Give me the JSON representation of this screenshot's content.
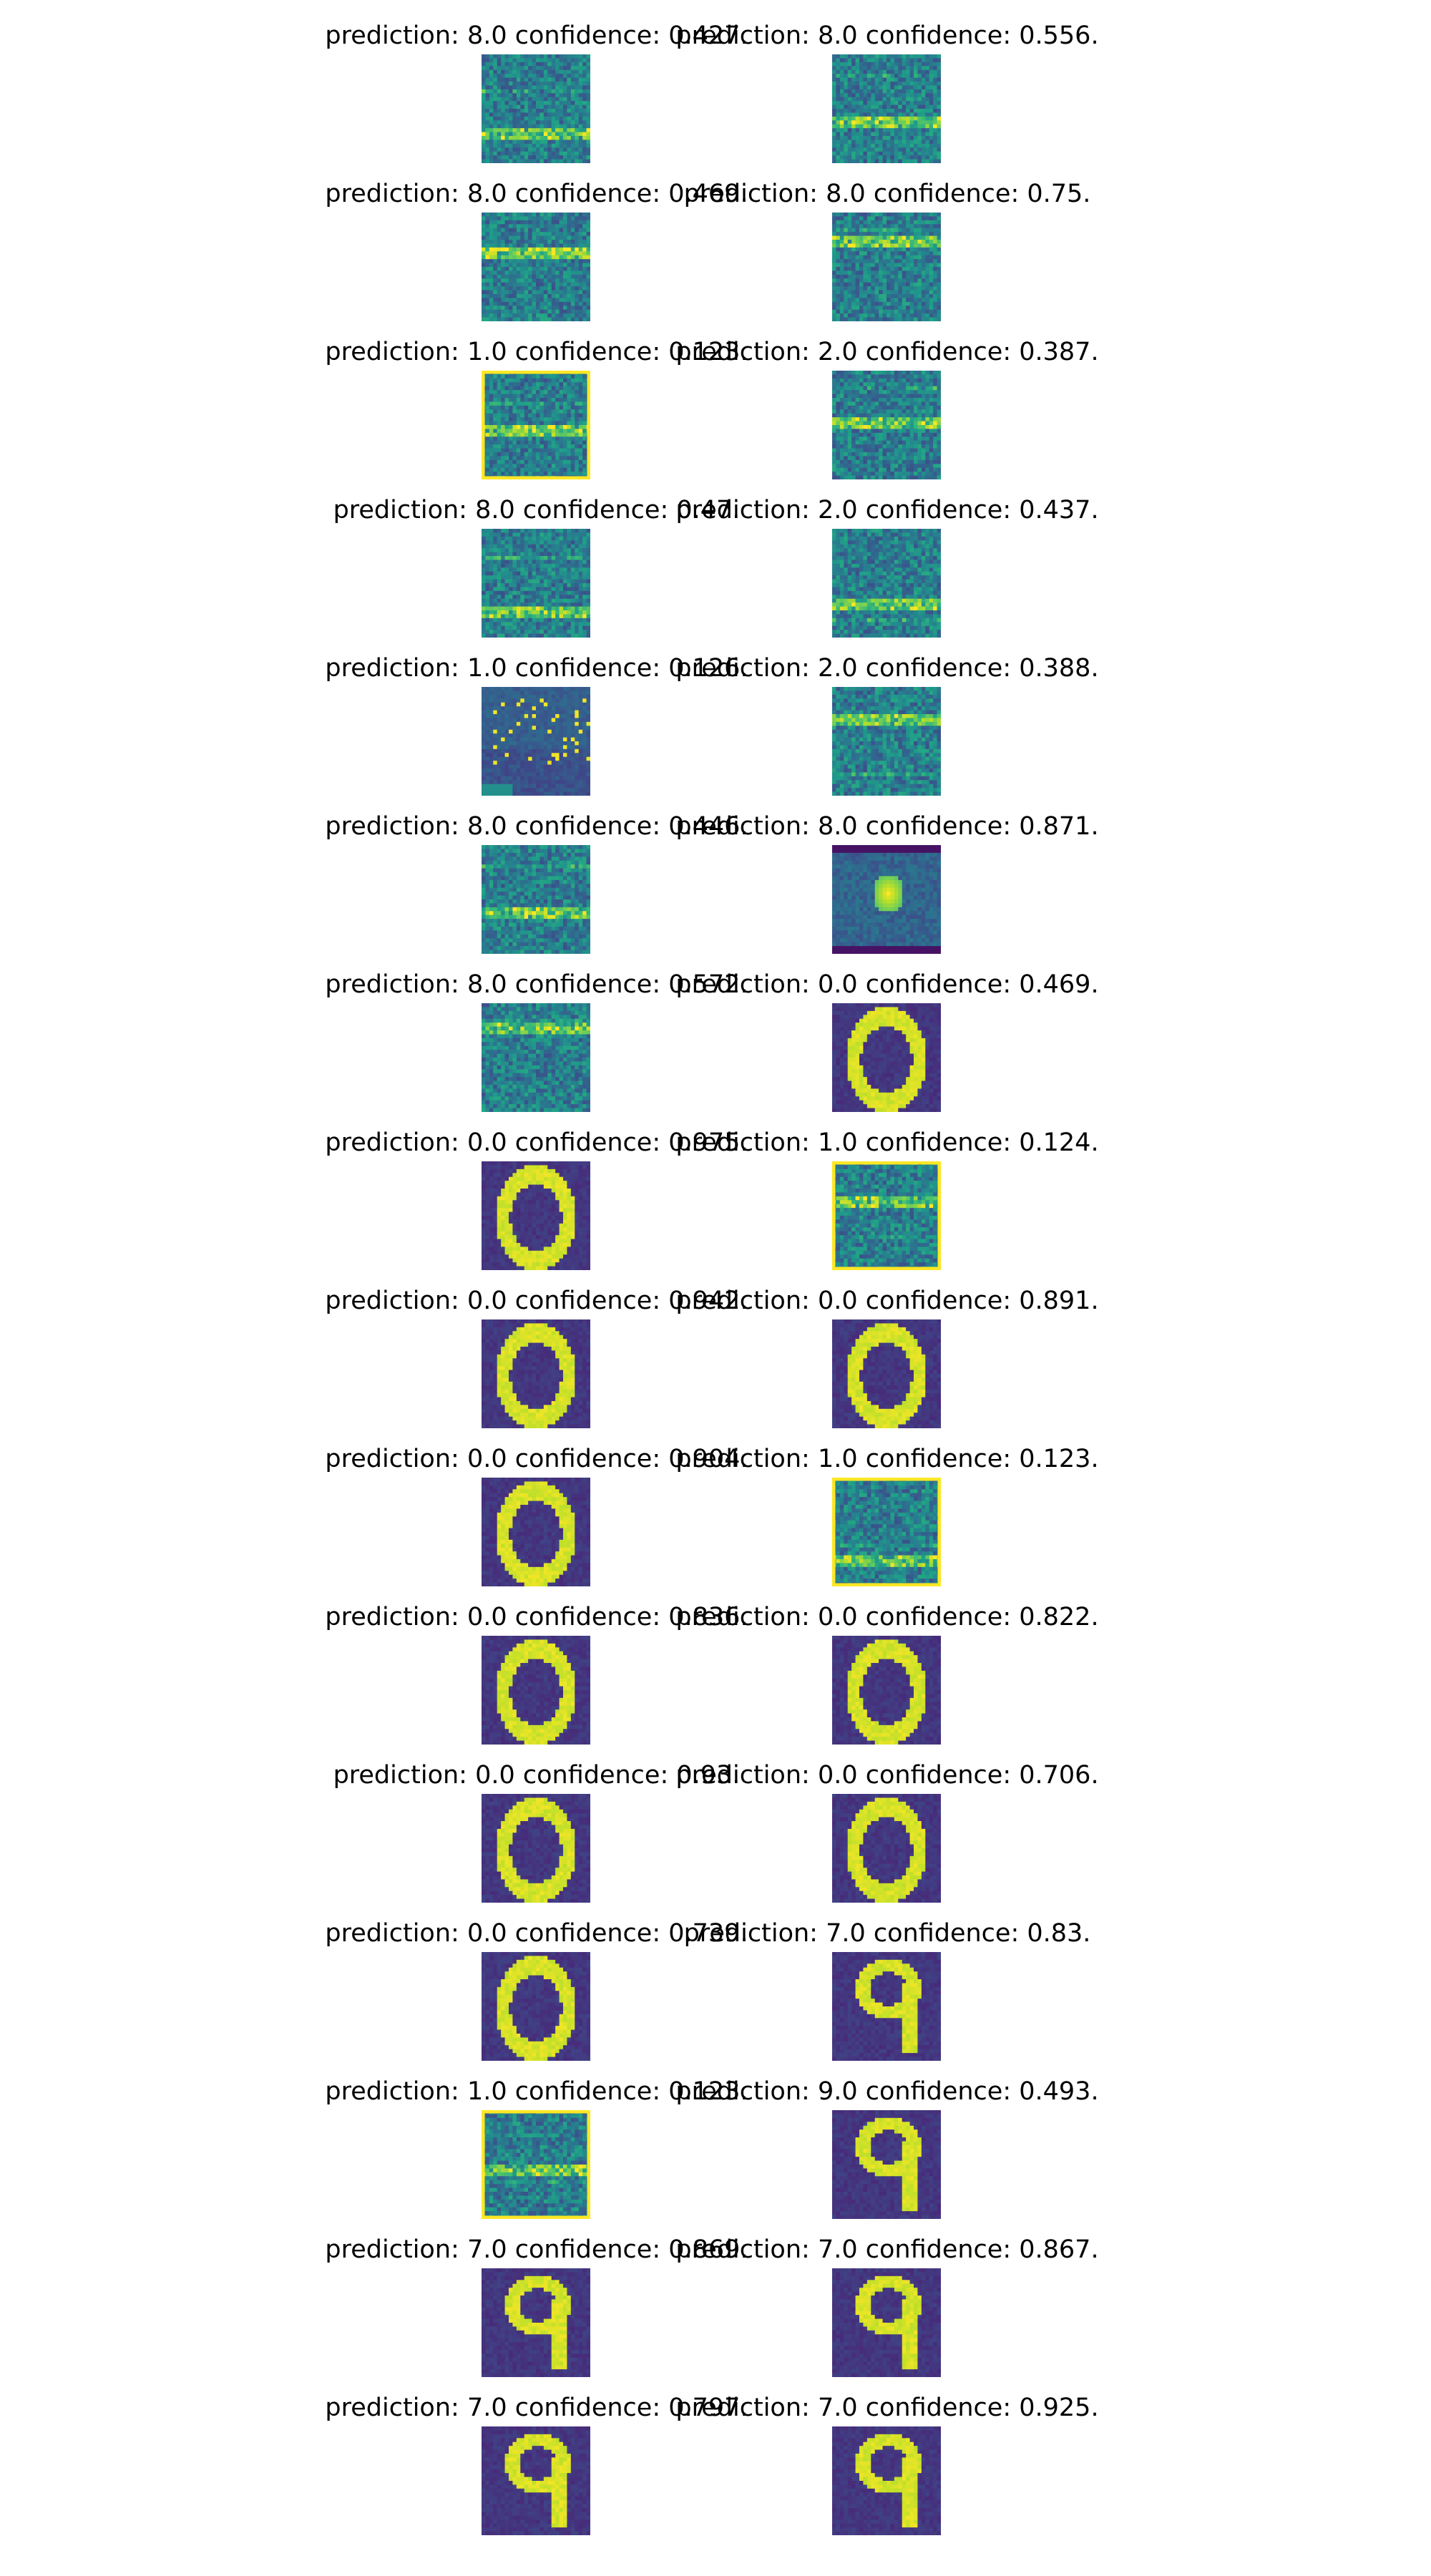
{
  "colors": {
    "viridis": [
      "#440154",
      "#482878",
      "#3e4989",
      "#31688e",
      "#26828e",
      "#1f9e89",
      "#35b779",
      "#6ece58",
      "#b5de2b",
      "#fde725"
    ],
    "background": "#ffffff",
    "text": "#000000"
  },
  "rows": [
    [
      {
        "title": "prediction: 8.0 confidence: 0.427.",
        "kind": "noise",
        "seed": 11,
        "frame": false
      },
      {
        "title": "prediction: 8.0 confidence: 0.556.",
        "kind": "noise",
        "seed": 12,
        "frame": false
      }
    ],
    [
      {
        "title": "prediction: 8.0 confidence: 0.469.",
        "kind": "noise",
        "seed": 21,
        "frame": false
      },
      {
        "title": "prediction: 8.0 confidence: 0.75.",
        "kind": "noise",
        "seed": 22,
        "frame": false
      }
    ],
    [
      {
        "title": "prediction: 1.0 confidence: 0.123.",
        "kind": "noise",
        "seed": 31,
        "frame": true
      },
      {
        "title": "prediction: 2.0 confidence: 0.387.",
        "kind": "noise",
        "seed": 32,
        "frame": false
      }
    ],
    [
      {
        "title": "prediction: 8.0 confidence: 0.47.",
        "kind": "noise",
        "seed": 41,
        "frame": false
      },
      {
        "title": "prediction: 2.0 confidence: 0.437.",
        "kind": "noise",
        "seed": 42,
        "frame": false
      }
    ],
    [
      {
        "title": "prediction: 1.0 confidence: 0.126.",
        "kind": "dots",
        "seed": 51,
        "frame": false
      },
      {
        "title": "prediction: 2.0 confidence: 0.388.",
        "kind": "noise",
        "seed": 52,
        "frame": false
      }
    ],
    [
      {
        "title": "prediction: 8.0 confidence: 0.446.",
        "kind": "noise",
        "seed": 61,
        "frame": false
      },
      {
        "title": "prediction: 8.0 confidence: 0.871.",
        "kind": "blob",
        "seed": 62,
        "frame": false
      }
    ],
    [
      {
        "title": "prediction: 8.0 confidence: 0.572.",
        "kind": "noise",
        "seed": 71,
        "frame": false
      },
      {
        "title": "prediction: 0.0 confidence: 0.469.",
        "kind": "zero",
        "seed": 72,
        "frame": false
      }
    ],
    [
      {
        "title": "prediction: 0.0 confidence: 0.975.",
        "kind": "zero",
        "seed": 81,
        "frame": false
      },
      {
        "title": "prediction: 1.0 confidence: 0.124.",
        "kind": "noise",
        "seed": 82,
        "frame": true
      }
    ],
    [
      {
        "title": "prediction: 0.0 confidence: 0.942.",
        "kind": "zero",
        "seed": 91,
        "frame": false
      },
      {
        "title": "prediction: 0.0 confidence: 0.891.",
        "kind": "zero",
        "seed": 92,
        "frame": false
      }
    ],
    [
      {
        "title": "prediction: 0.0 confidence: 0.904.",
        "kind": "zero",
        "seed": 101,
        "frame": false
      },
      {
        "title": "prediction: 1.0 confidence: 0.123.",
        "kind": "noise",
        "seed": 102,
        "frame": true
      }
    ],
    [
      {
        "title": "prediction: 0.0 confidence: 0.836.",
        "kind": "zero",
        "seed": 111,
        "frame": false
      },
      {
        "title": "prediction: 0.0 confidence: 0.822.",
        "kind": "zero",
        "seed": 112,
        "frame": false
      }
    ],
    [
      {
        "title": "prediction: 0.0 confidence: 0.93.",
        "kind": "zero",
        "seed": 121,
        "frame": false
      },
      {
        "title": "prediction: 0.0 confidence: 0.706.",
        "kind": "zero",
        "seed": 122,
        "frame": false
      }
    ],
    [
      {
        "title": "prediction: 0.0 confidence: 0.739.",
        "kind": "zero",
        "seed": 131,
        "frame": false
      },
      {
        "title": "prediction: 7.0 confidence: 0.83.",
        "kind": "nine",
        "seed": 132,
        "frame": false
      }
    ],
    [
      {
        "title": "prediction: 1.0 confidence: 0.123.",
        "kind": "noise",
        "seed": 141,
        "frame": true
      },
      {
        "title": "prediction: 9.0 confidence: 0.493.",
        "kind": "nine",
        "seed": 142,
        "frame": false
      }
    ],
    [
      {
        "title": "prediction: 7.0 confidence: 0.869.",
        "kind": "nine",
        "seed": 151,
        "frame": false
      },
      {
        "title": "prediction: 7.0 confidence: 0.867.",
        "kind": "nine",
        "seed": 152,
        "frame": false
      }
    ],
    [
      {
        "title": "prediction: 7.0 confidence: 0.797.",
        "kind": "nine",
        "seed": 161,
        "frame": false
      },
      {
        "title": "prediction: 7.0 confidence: 0.925.",
        "kind": "nine",
        "seed": 162,
        "frame": false
      }
    ]
  ]
}
